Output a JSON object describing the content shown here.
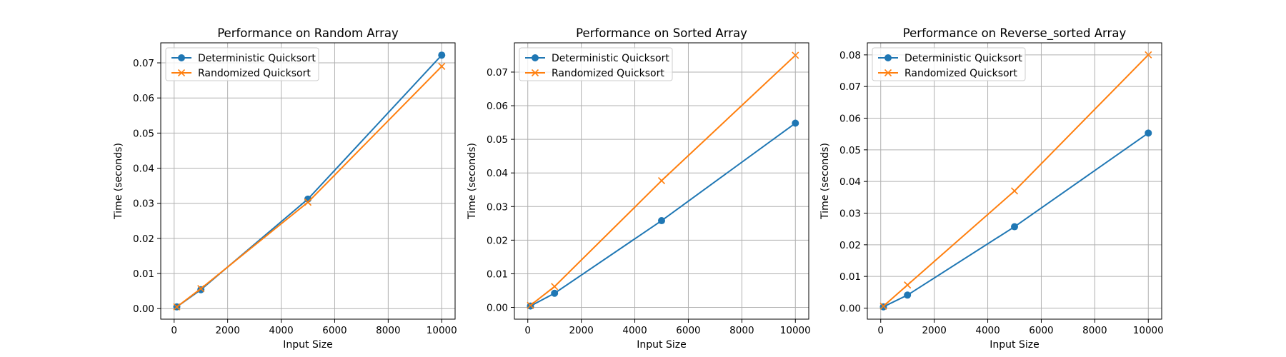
{
  "chart_data": [
    {
      "type": "line",
      "title": "Performance on Random Array",
      "xlabel": "Input Size",
      "ylabel": "Time (seconds)",
      "x": [
        100,
        1000,
        5000,
        10000
      ],
      "xlim": [
        -500,
        10500
      ],
      "ylim": [
        -0.003,
        0.0757
      ],
      "xticks": [
        0,
        2000,
        4000,
        6000,
        8000,
        10000
      ],
      "yticks": [
        0.0,
        0.01,
        0.02,
        0.03,
        0.04,
        0.05,
        0.06,
        0.07
      ],
      "grid": true,
      "legend": "upper left",
      "series": [
        {
          "name": "Deterministic Quicksort",
          "values": [
            0.0005,
            0.0054,
            0.0312,
            0.0722
          ],
          "color": "#1f77b4",
          "marker": "circle"
        },
        {
          "name": "Randomized Quicksort",
          "values": [
            0.0005,
            0.0057,
            0.0303,
            0.069
          ],
          "color": "#ff7f0e",
          "marker": "x"
        }
      ]
    },
    {
      "type": "line",
      "title": "Performance on Sorted Array",
      "xlabel": "Input Size",
      "ylabel": "Time (seconds)",
      "x": [
        100,
        1000,
        5000,
        10000
      ],
      "xlim": [
        -500,
        10500
      ],
      "ylim": [
        -0.0035,
        0.0787
      ],
      "xticks": [
        0,
        2000,
        4000,
        6000,
        8000,
        10000
      ],
      "yticks": [
        0.0,
        0.01,
        0.02,
        0.03,
        0.04,
        0.05,
        0.06,
        0.07
      ],
      "grid": true,
      "legend": "upper left",
      "series": [
        {
          "name": "Deterministic Quicksort",
          "values": [
            0.0004,
            0.0042,
            0.0258,
            0.0548
          ],
          "color": "#1f77b4",
          "marker": "circle"
        },
        {
          "name": "Randomized Quicksort",
          "values": [
            0.0006,
            0.0062,
            0.0377,
            0.075
          ],
          "color": "#ff7f0e",
          "marker": "x"
        }
      ]
    },
    {
      "type": "line",
      "title": "Performance on Reverse_sorted Array",
      "xlabel": "Input Size",
      "ylabel": "Time (seconds)",
      "x": [
        100,
        1000,
        5000,
        10000
      ],
      "xlim": [
        -500,
        10500
      ],
      "ylim": [
        -0.0035,
        0.0838
      ],
      "xticks": [
        0,
        2000,
        4000,
        6000,
        8000,
        10000
      ],
      "yticks": [
        0.0,
        0.01,
        0.02,
        0.03,
        0.04,
        0.05,
        0.06,
        0.07,
        0.08
      ],
      "grid": true,
      "legend": "upper left",
      "series": [
        {
          "name": "Deterministic Quicksort",
          "values": [
            0.0004,
            0.0041,
            0.0257,
            0.0553
          ],
          "color": "#1f77b4",
          "marker": "circle"
        },
        {
          "name": "Randomized Quicksort",
          "values": [
            0.0006,
            0.0073,
            0.037,
            0.08
          ],
          "color": "#ff7f0e",
          "marker": "x"
        }
      ]
    }
  ]
}
